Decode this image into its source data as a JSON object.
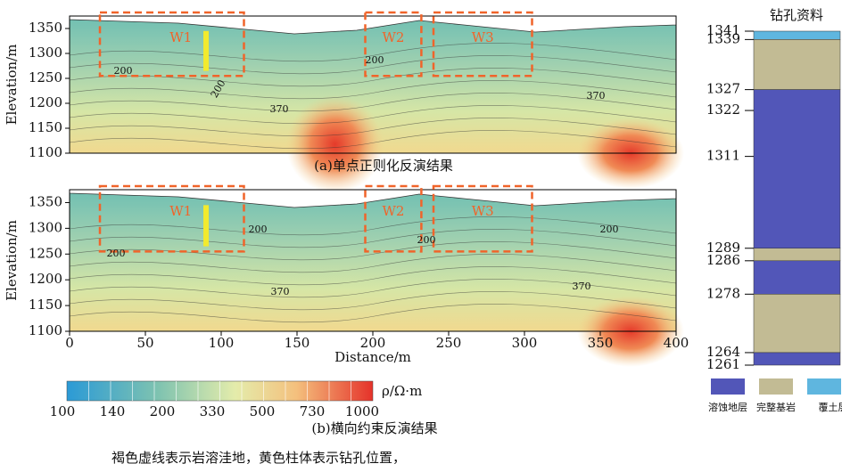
{
  "y_axis_label": "Elevation/m",
  "x_axis_label": "Distance/m",
  "yticks": [
    1100,
    1150,
    1200,
    1250,
    1300,
    1350
  ],
  "xticks": [
    0,
    50,
    100,
    150,
    200,
    250,
    300,
    350,
    400
  ],
  "panel_a": {
    "caption": "(a)单点正则化反演结果",
    "boxes": [
      "W1",
      "W2",
      "W3"
    ],
    "contour_labels": [
      "200",
      "200",
      "200",
      "370",
      "370"
    ]
  },
  "panel_b": {
    "caption": "(b)横向约束反演结果",
    "boxes": [
      "W1",
      "W2",
      "W3"
    ],
    "contour_labels": [
      "200",
      "200",
      "200",
      "200",
      "370",
      "370"
    ]
  },
  "colorbar": {
    "unit": "ρ/Ω·m",
    "ticks": [
      "100",
      "140",
      "200",
      "330",
      "500",
      "730",
      "1000"
    ]
  },
  "borehole": {
    "title": "钻孔资料",
    "depths": [
      1341,
      1339,
      1327,
      1322,
      1311,
      1289,
      1286,
      1278,
      1264,
      1261
    ],
    "legend": [
      "溶蚀地层",
      "完整基岩",
      "覆土层"
    ]
  },
  "note": "褐色虚线表示岩溶洼地，黄色柱体表示钻孔位置，"
}
